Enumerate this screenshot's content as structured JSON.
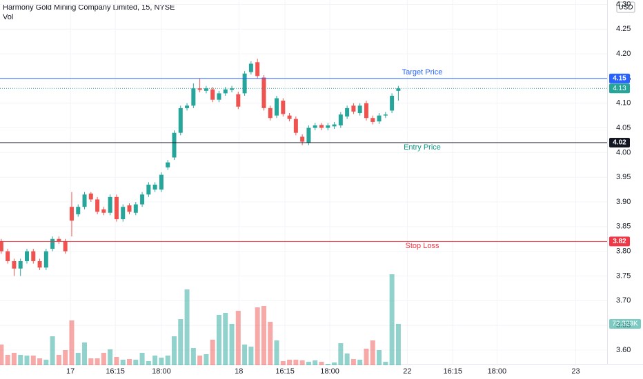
{
  "chart_data": {
    "type": "candlestick",
    "title": "Harmony Gold Mining Company Limited, 15, NYSE",
    "volume_name": "Vol",
    "currency": "USD",
    "up_color": "#26a69a",
    "down_color": "#ef5350",
    "grid": true,
    "x": [
      0,
      1,
      2,
      3,
      4,
      5,
      6,
      7,
      8,
      9,
      10,
      11,
      12,
      13,
      14,
      15,
      16,
      17,
      18,
      19,
      20,
      21,
      22,
      23,
      24,
      25,
      26,
      27,
      28,
      29,
      30,
      31,
      32,
      33,
      34,
      35,
      36,
      37,
      38,
      39,
      40,
      41,
      42,
      43,
      44,
      45,
      46,
      47,
      48,
      49,
      50,
      51,
      52,
      53,
      54,
      55,
      56,
      57,
      58,
      59,
      60,
      61,
      62
    ],
    "open": [
      3.82,
      3.8,
      3.78,
      3.765,
      3.78,
      3.8,
      3.78,
      3.767,
      3.805,
      3.825,
      3.82,
      3.89,
      3.875,
      3.89,
      3.917,
      3.905,
      3.885,
      3.878,
      3.91,
      3.865,
      3.893,
      3.878,
      3.895,
      3.915,
      3.925,
      3.925,
      3.97,
      3.99,
      4.04,
      4.09,
      4.095,
      4.13,
      4.125,
      4.128,
      4.107,
      4.12,
      4.127,
      4.118,
      4.12,
      4.163,
      4.183,
      4.152,
      4.09,
      4.075,
      4.105,
      4.075,
      4.068,
      4.032,
      4.02,
      4.05,
      4.056,
      4.05,
      4.053,
      4.055,
      4.073,
      4.095,
      4.08,
      4.1,
      4.07,
      4.063,
      4.075,
      4.085,
      4.125
    ],
    "high": [
      3.825,
      3.805,
      3.785,
      3.785,
      3.805,
      3.805,
      3.785,
      3.805,
      3.83,
      3.83,
      3.825,
      3.92,
      3.895,
      3.92,
      3.92,
      3.91,
      3.89,
      3.915,
      3.915,
      3.895,
      3.897,
      3.9,
      3.92,
      3.94,
      3.94,
      3.96,
      3.985,
      4.045,
      4.095,
      4.1,
      4.14,
      4.15,
      4.135,
      4.133,
      4.125,
      4.133,
      4.135,
      4.123,
      4.165,
      4.185,
      4.19,
      4.157,
      4.095,
      4.115,
      4.11,
      4.08,
      4.073,
      4.037,
      4.055,
      4.06,
      4.06,
      4.06,
      4.062,
      4.082,
      4.095,
      4.1,
      4.1,
      4.105,
      4.075,
      4.08,
      4.082,
      4.12,
      4.135
    ],
    "low": [
      3.795,
      3.775,
      3.75,
      3.75,
      3.775,
      3.775,
      3.762,
      3.762,
      3.8,
      3.815,
      3.795,
      3.83,
      3.87,
      3.885,
      3.9,
      3.875,
      3.873,
      3.873,
      3.86,
      3.86,
      3.875,
      3.873,
      3.89,
      3.91,
      3.92,
      3.92,
      3.965,
      3.985,
      4.035,
      4.085,
      4.09,
      4.122,
      4.12,
      4.102,
      4.102,
      4.115,
      4.122,
      4.088,
      4.115,
      4.158,
      4.15,
      4.085,
      4.065,
      4.07,
      4.073,
      4.063,
      4.035,
      4.015,
      4.015,
      4.045,
      4.045,
      4.045,
      4.048,
      4.05,
      4.068,
      4.078,
      4.075,
      4.065,
      4.057,
      4.058,
      4.07,
      4.08,
      4.105
    ],
    "close": [
      3.8,
      3.78,
      3.765,
      3.78,
      3.8,
      3.78,
      3.767,
      3.8,
      3.825,
      3.82,
      3.8,
      3.862,
      3.89,
      3.915,
      3.905,
      3.88,
      3.878,
      3.91,
      3.865,
      3.89,
      3.88,
      3.895,
      3.915,
      3.935,
      3.935,
      3.955,
      3.98,
      4.04,
      4.09,
      4.095,
      4.13,
      4.127,
      4.13,
      4.107,
      4.12,
      4.128,
      4.13,
      4.093,
      4.16,
      4.18,
      4.155,
      4.09,
      4.07,
      4.11,
      4.078,
      4.068,
      4.04,
      4.022,
      4.05,
      4.055,
      4.05,
      4.055,
      4.057,
      4.077,
      4.09,
      4.083,
      4.095,
      4.07,
      4.062,
      4.075,
      4.077,
      4.115,
      4.13
    ],
    "volume": [
      36160,
      18080,
      21700,
      18080,
      16880,
      16880,
      12050,
      9640,
      50620,
      18080,
      26520,
      78330,
      21700,
      39780,
      12050,
      12050,
      21700,
      27720,
      14460,
      9640,
      10850,
      9640,
      21700,
      7230,
      16880,
      13260,
      16880,
      50620,
      80750,
      132570,
      30130,
      16880,
      19290,
      44600,
      88000,
      91600,
      72300,
      95200,
      36160,
      32540,
      101250,
      103650,
      75940,
      43390,
      7230,
      9640,
      9640,
      8440,
      6030,
      8440,
      6030,
      2410,
      4820,
      38570,
      20490,
      10850,
      9640,
      28930,
      43390,
      26520,
      6030,
      159100,
      72323
    ],
    "volume_last_label": "72.323K",
    "ylim": [
      3.572,
      4.309
    ],
    "yticks": [
      {
        "value": 3.6,
        "label": "3.60"
      },
      3.65,
      {
        "value": 3.7,
        "label": "3.70"
      },
      3.75,
      {
        "value": 3.8,
        "label": "3.80"
      },
      3.85,
      {
        "value": 3.9,
        "label": "3.90"
      },
      3.95,
      {
        "value": 4.0,
        "label": "4.00"
      },
      4.05,
      {
        "value": 4.1,
        "label": "4.10"
      },
      4.15,
      {
        "value": 4.2,
        "label": "4.20"
      },
      4.25,
      {
        "value": 4.3,
        "label": "4.30"
      }
    ],
    "xlim": [
      -0.2,
      94.6
    ],
    "xticks": [
      {
        "value": 10.8,
        "label": "17"
      },
      {
        "value": 17.8,
        "label": "16:15"
      },
      {
        "value": 25,
        "label": "18:00"
      },
      {
        "value": 37.1,
        "label": "18"
      },
      {
        "value": 44.3,
        "label": "16:15"
      },
      {
        "value": 51.3,
        "label": "18:00"
      },
      {
        "value": 63.4,
        "label": "22"
      },
      {
        "value": 70.5,
        "label": "16:15"
      },
      {
        "value": 77.4,
        "label": "18:00"
      },
      {
        "value": 89.7,
        "label": "23"
      }
    ],
    "lines": [
      {
        "name": "Target Price",
        "value": 4.15,
        "color": "#2962ff",
        "text_color": "#2962ff",
        "label_side": "above"
      },
      {
        "name": "Entry Price",
        "value": 4.02,
        "color": "#131722",
        "text_color": "#089981",
        "label_side": "below"
      },
      {
        "name": "Stop Loss",
        "value": 3.82,
        "color": "#f23645",
        "text_color": "#f23645",
        "label_side": "below"
      }
    ]
  }
}
